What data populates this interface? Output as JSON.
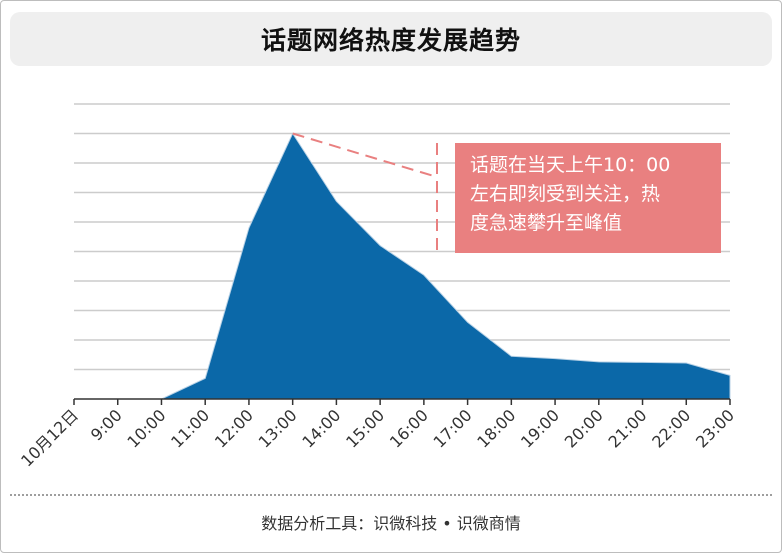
{
  "title": "话题网络热度发展趋势",
  "annotation": {
    "lines": [
      "话题在当天上午10：00",
      "左右即刻受到关注，热",
      "度急速攀升至峰值"
    ],
    "color": "#e98080"
  },
  "footer": "数据分析工具：识微科技 • 识微商情",
  "chart_data": {
    "type": "area",
    "categories": [
      "10月12日",
      "9:00",
      "10:00",
      "11:00",
      "12:00",
      "13:00",
      "14:00",
      "15:00",
      "16:00",
      "17:00",
      "18:00",
      "19:00",
      "20:00",
      "21:00",
      "22:00",
      "23:00"
    ],
    "values": [
      0,
      0,
      0,
      7,
      58,
      90,
      67,
      52,
      42,
      26,
      14.5,
      13.7,
      12.6,
      12.4,
      12.2,
      8
    ],
    "ylim": [
      0,
      100
    ],
    "grid": true,
    "fill_color": "#0b68a8",
    "grid_color": "#cccccc"
  }
}
